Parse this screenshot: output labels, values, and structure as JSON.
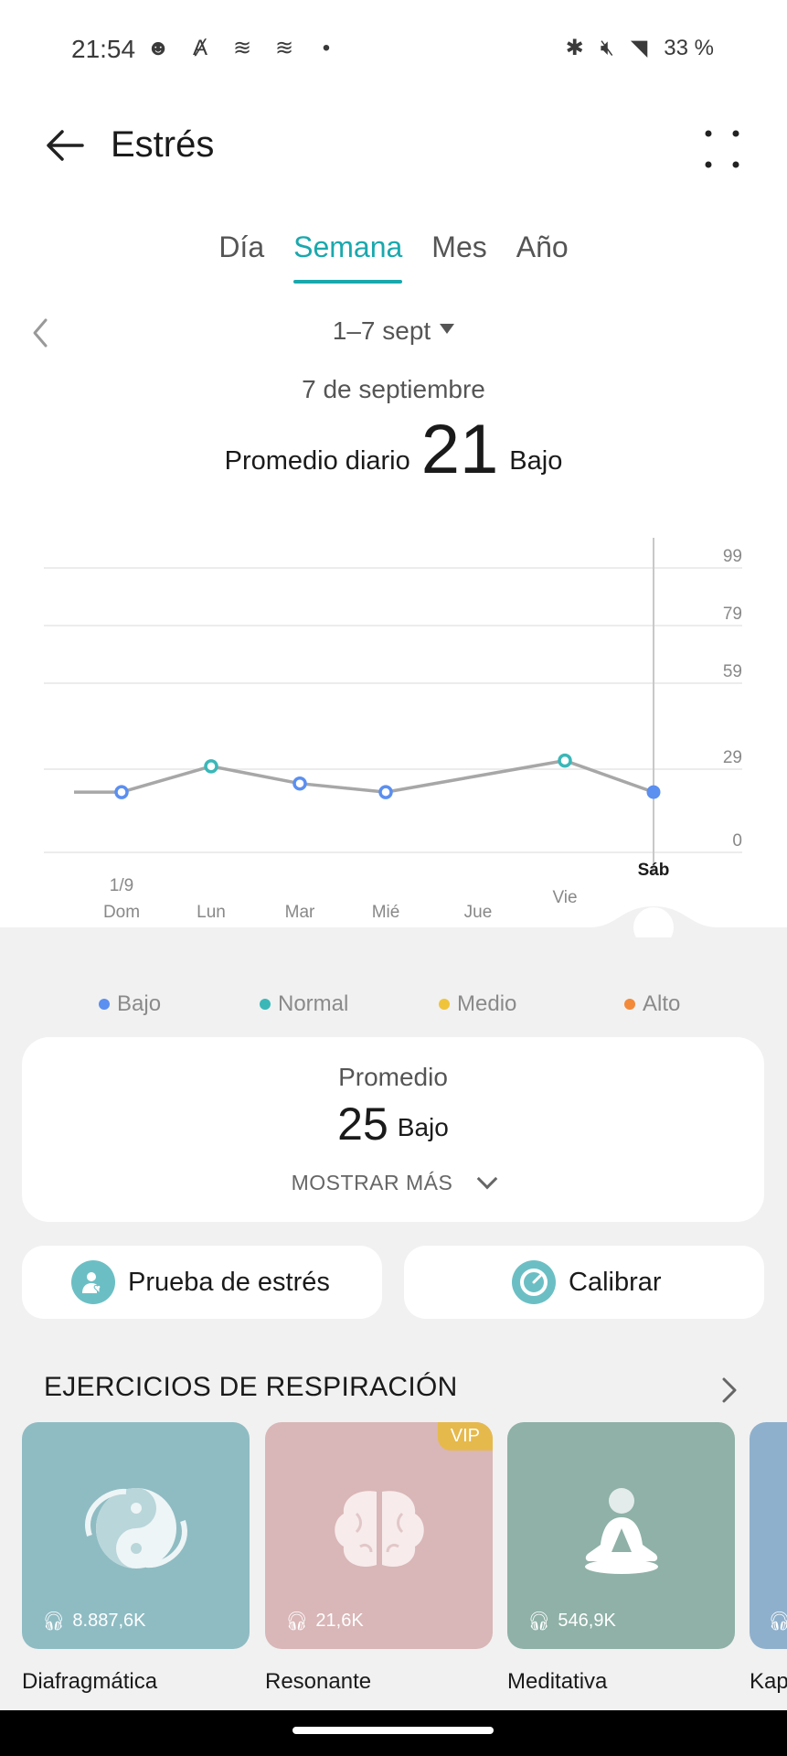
{
  "status": {
    "time": "21:54",
    "battery": "33 %"
  },
  "header": {
    "title": "Estrés"
  },
  "tabs": [
    {
      "label": "Día",
      "active": false
    },
    {
      "label": "Semana",
      "active": true
    },
    {
      "label": "Mes",
      "active": false
    },
    {
      "label": "Año",
      "active": false
    }
  ],
  "range": {
    "label": "1–7 sept"
  },
  "summary": {
    "date": "7 de septiembre",
    "avg_label": "Promedio diario",
    "avg_value": "21",
    "level": "Bajo"
  },
  "chart_data": {
    "type": "line",
    "y_ticks": [
      "99",
      "79",
      "59",
      "29",
      "0"
    ],
    "ylim": [
      0,
      99
    ],
    "days": [
      {
        "top": "1/9",
        "label": "Dom",
        "value": 21,
        "level": "Bajo"
      },
      {
        "top": "",
        "label": "Lun",
        "value": 30,
        "level": "Normal"
      },
      {
        "top": "",
        "label": "Mar",
        "value": 24,
        "level": "Bajo"
      },
      {
        "top": "",
        "label": "Mié",
        "value": 21,
        "level": "Bajo"
      },
      {
        "top": "",
        "label": "Jue",
        "value": null,
        "level": ""
      },
      {
        "top": "",
        "label": "Vie",
        "value": 32,
        "level": "Normal"
      },
      {
        "top": "",
        "label": "Sáb",
        "value": 21,
        "level": "Bajo",
        "selected": true
      }
    ],
    "grid": true
  },
  "legend": [
    {
      "label": "Bajo",
      "color": "#5b8ff0"
    },
    {
      "label": "Normal",
      "color": "#3bb7b8"
    },
    {
      "label": "Medio",
      "color": "#f0c43a"
    },
    {
      "label": "Alto",
      "color": "#f28a3a"
    }
  ],
  "average_card": {
    "title": "Promedio",
    "value": "25",
    "level": "Bajo",
    "more_label": "MOSTRAR MÁS"
  },
  "buttons": {
    "stress_test": "Prueba de estrés",
    "calibrate": "Calibrar"
  },
  "exercises": {
    "title": "EJERCICIOS DE RESPIRACIÓN",
    "items": [
      {
        "name": "Diafragmática",
        "count": "8.887,6K",
        "color": "#8fbcc3",
        "vip": ""
      },
      {
        "name": "Resonante",
        "count": "21,6K",
        "color": "#d9b6b7",
        "vip": "VIP"
      },
      {
        "name": "Meditativa",
        "count": "546,9K",
        "color": "#8fb1a7",
        "vip": ""
      },
      {
        "name": "Kap",
        "count": "",
        "color": "#8fb0cc",
        "vip": ""
      }
    ]
  }
}
